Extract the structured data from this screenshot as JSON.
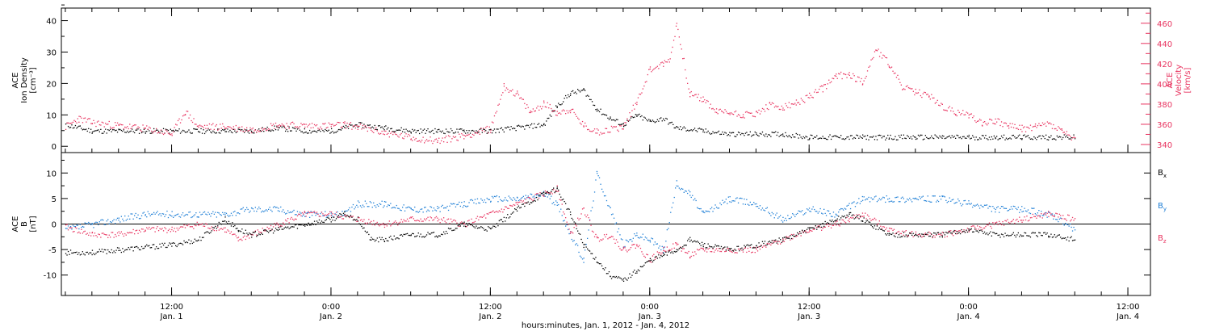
{
  "colors": {
    "black": "#000000",
    "pink": "#e8335f",
    "blue": "#1f7fd6"
  },
  "x_axis": {
    "ticks": [
      {
        "t": 12,
        "time": "12:00",
        "date": "Jan. 1"
      },
      {
        "t": 24,
        "time": "0:00",
        "date": "Jan. 2"
      },
      {
        "t": 36,
        "time": "12:00",
        "date": "Jan. 2"
      },
      {
        "t": 48,
        "time": "0:00",
        "date": "Jan. 3"
      },
      {
        "t": 60,
        "time": "12:00",
        "date": "Jan. 3"
      },
      {
        "t": 72,
        "time": "0:00",
        "date": "Jan. 4"
      },
      {
        "t": 84,
        "time": "12:00",
        "date": "Jan. 4"
      }
    ],
    "label": "hours:minutes, Jan.  1, 2012 - Jan.  4, 2012"
  },
  "chart_data": [
    {
      "type": "scatter",
      "panel": "top",
      "xlim": [
        3.7,
        85.7
      ],
      "ylabel": [
        "ACE",
        "Ion Density",
        "[cm⁻³]"
      ],
      "ylim": [
        -2,
        44
      ],
      "yticks": [
        0,
        10,
        20,
        30,
        40
      ],
      "y2label": [
        "ACE",
        "Velocity",
        "[km/s]"
      ],
      "y2lim": [
        332,
        475
      ],
      "y2ticks": [
        340,
        360,
        380,
        400,
        420,
        440,
        460
      ],
      "series": [
        {
          "color_key": "black",
          "axis": "left",
          "points": [
            [
              4,
              7
            ],
            [
              6,
              5
            ],
            [
              8,
              5
            ],
            [
              10,
              5
            ],
            [
              12,
              5
            ],
            [
              14,
              5
            ],
            [
              16,
              5
            ],
            [
              18,
              5
            ],
            [
              20,
              6
            ],
            [
              22,
              5
            ],
            [
              24,
              5
            ],
            [
              25,
              6
            ],
            [
              26,
              7
            ],
            [
              28,
              6
            ],
            [
              30,
              5
            ],
            [
              32,
              5
            ],
            [
              34,
              5
            ],
            [
              36,
              5
            ],
            [
              38,
              6
            ],
            [
              40,
              7
            ],
            [
              41,
              13
            ],
            [
              42,
              17
            ],
            [
              43,
              18
            ],
            [
              44,
              12
            ],
            [
              45,
              9
            ],
            [
              46,
              7
            ],
            [
              47,
              10
            ],
            [
              48,
              8
            ],
            [
              49,
              9
            ],
            [
              50,
              6
            ],
            [
              52,
              5
            ],
            [
              54,
              4
            ],
            [
              56,
              4
            ],
            [
              58,
              4
            ],
            [
              60,
              3
            ],
            [
              62,
              3
            ],
            [
              64,
              3
            ],
            [
              66,
              3
            ],
            [
              68,
              3
            ],
            [
              70,
              3
            ],
            [
              72,
              3
            ],
            [
              74,
              3
            ],
            [
              76,
              3
            ],
            [
              78,
              3
            ],
            [
              80,
              3
            ]
          ]
        },
        {
          "color_key": "pink",
          "axis": "right",
          "points": [
            [
              4,
              358
            ],
            [
              5,
              366
            ],
            [
              6,
              362
            ],
            [
              8,
              359
            ],
            [
              10,
              356
            ],
            [
              12,
              351
            ],
            [
              13,
              373
            ],
            [
              14,
              358
            ],
            [
              16,
              358
            ],
            [
              18,
              355
            ],
            [
              20,
              360
            ],
            [
              22,
              359
            ],
            [
              24,
              359
            ],
            [
              25,
              360
            ],
            [
              26,
              358
            ],
            [
              28,
              352
            ],
            [
              30,
              347
            ],
            [
              32,
              344
            ],
            [
              34,
              349
            ],
            [
              36,
              356
            ],
            [
              37,
              398
            ],
            [
              38,
              390
            ],
            [
              39,
              372
            ],
            [
              40,
              381
            ],
            [
              41,
              372
            ],
            [
              42,
              375
            ],
            [
              43,
              359
            ],
            [
              44,
              353
            ],
            [
              46,
              358
            ],
            [
              47,
              383
            ],
            [
              48,
              415
            ],
            [
              49,
              420
            ],
            [
              49.5,
              425
            ],
            [
              50,
              460
            ],
            [
              51,
              390
            ],
            [
              52,
              385
            ],
            [
              53,
              373
            ],
            [
              54,
              372
            ],
            [
              55,
              370
            ],
            [
              56,
              371
            ],
            [
              57,
              379
            ],
            [
              58,
              377
            ],
            [
              59,
              381
            ],
            [
              60,
              388
            ],
            [
              61,
              396
            ],
            [
              62,
              408
            ],
            [
              63,
              410
            ],
            [
              64,
              402
            ],
            [
              65,
              435
            ],
            [
              66,
              420
            ],
            [
              67,
              397
            ],
            [
              68,
              392
            ],
            [
              69,
              389
            ],
            [
              70,
              378
            ],
            [
              71,
              372
            ],
            [
              72,
              370
            ],
            [
              73,
              362
            ],
            [
              74,
              364
            ],
            [
              75,
              359
            ],
            [
              76,
              356
            ],
            [
              77,
              358
            ],
            [
              78,
              361
            ],
            [
              79,
              354
            ],
            [
              80,
              345
            ]
          ]
        }
      ]
    },
    {
      "type": "scatter",
      "panel": "bottom",
      "xlim": [
        3.7,
        85.7
      ],
      "ylabel": [
        "ACE",
        "B",
        "[nT]"
      ],
      "ylim": [
        -14,
        14
      ],
      "yticks": [
        -10,
        -5,
        0,
        5,
        10
      ],
      "series": [
        {
          "name": "Bx",
          "color_key": "black",
          "points": [
            [
              4,
              -5.5
            ],
            [
              6,
              -5.5
            ],
            [
              8,
              -5
            ],
            [
              10,
              -4.5
            ],
            [
              12,
              -4
            ],
            [
              14,
              -3
            ],
            [
              16,
              1
            ],
            [
              17,
              -1
            ],
            [
              18,
              -2
            ],
            [
              20,
              -1
            ],
            [
              22,
              0
            ],
            [
              24,
              1
            ],
            [
              25,
              2
            ],
            [
              26,
              1
            ],
            [
              27,
              -3
            ],
            [
              28,
              -3
            ],
            [
              30,
              -2
            ],
            [
              32,
              -2
            ],
            [
              34,
              0
            ],
            [
              36,
              -1
            ],
            [
              38,
              3
            ],
            [
              40,
              6
            ],
            [
              41,
              7
            ],
            [
              42,
              2
            ],
            [
              43,
              -4
            ],
            [
              44,
              -7
            ],
            [
              45,
              -10
            ],
            [
              46,
              -11
            ],
            [
              47,
              -9
            ],
            [
              48,
              -7
            ],
            [
              49,
              -6
            ],
            [
              50,
              -5
            ],
            [
              51,
              -3
            ],
            [
              52,
              -4
            ],
            [
              54,
              -5
            ],
            [
              56,
              -4
            ],
            [
              58,
              -3
            ],
            [
              60,
              -1
            ],
            [
              62,
              1
            ],
            [
              63,
              2
            ],
            [
              64,
              1
            ],
            [
              66,
              -2
            ],
            [
              68,
              -2
            ],
            [
              70,
              -2
            ],
            [
              72,
              -1
            ],
            [
              74,
              -2
            ],
            [
              76,
              -2
            ],
            [
              78,
              -2
            ],
            [
              80,
              -3
            ]
          ]
        },
        {
          "name": "By",
          "color_key": "blue",
          "points": [
            [
              4,
              -1
            ],
            [
              6,
              0
            ],
            [
              8,
              1
            ],
            [
              10,
              2
            ],
            [
              12,
              2
            ],
            [
              14,
              2
            ],
            [
              16,
              2
            ],
            [
              18,
              3
            ],
            [
              20,
              3
            ],
            [
              22,
              2
            ],
            [
              24,
              2
            ],
            [
              25,
              2
            ],
            [
              26,
              4
            ],
            [
              28,
              4
            ],
            [
              30,
              3
            ],
            [
              32,
              3
            ],
            [
              34,
              4
            ],
            [
              36,
              5
            ],
            [
              38,
              5
            ],
            [
              40,
              6
            ],
            [
              41,
              4
            ],
            [
              42,
              -2
            ],
            [
              43,
              -7
            ],
            [
              44,
              10
            ],
            [
              45,
              3
            ],
            [
              46,
              -4
            ],
            [
              47,
              -2
            ],
            [
              48,
              -3
            ],
            [
              49,
              -5
            ],
            [
              50,
              8
            ],
            [
              51,
              6
            ],
            [
              52,
              2
            ],
            [
              54,
              5
            ],
            [
              56,
              4
            ],
            [
              58,
              1
            ],
            [
              60,
              3
            ],
            [
              62,
              2
            ],
            [
              64,
              5
            ],
            [
              66,
              5
            ],
            [
              68,
              5
            ],
            [
              70,
              5
            ],
            [
              72,
              4
            ],
            [
              74,
              3
            ],
            [
              76,
              3
            ],
            [
              78,
              2
            ],
            [
              80,
              -1
            ]
          ]
        },
        {
          "name": "Bz",
          "color_key": "pink",
          "points": [
            [
              4,
              -0.5
            ],
            [
              6,
              -2
            ],
            [
              8,
              -2
            ],
            [
              10,
              -1
            ],
            [
              12,
              -1
            ],
            [
              14,
              0
            ],
            [
              16,
              -1
            ],
            [
              17,
              -3
            ],
            [
              18,
              -2
            ],
            [
              20,
              0
            ],
            [
              22,
              2
            ],
            [
              24,
              2
            ],
            [
              26,
              1
            ],
            [
              28,
              0
            ],
            [
              30,
              1
            ],
            [
              32,
              1
            ],
            [
              34,
              0
            ],
            [
              36,
              2
            ],
            [
              38,
              4
            ],
            [
              40,
              6
            ],
            [
              41,
              7
            ],
            [
              42,
              -2
            ],
            [
              43,
              3
            ],
            [
              44,
              -3
            ],
            [
              45,
              -2
            ],
            [
              46,
              -5
            ],
            [
              47,
              -4
            ],
            [
              48,
              -7
            ],
            [
              49,
              -5
            ],
            [
              50,
              -4
            ],
            [
              51,
              -6
            ],
            [
              52,
              -5
            ],
            [
              54,
              -5
            ],
            [
              56,
              -5
            ],
            [
              58,
              -3
            ],
            [
              60,
              -1
            ],
            [
              62,
              0
            ],
            [
              63,
              1
            ],
            [
              64,
              2
            ],
            [
              66,
              -1
            ],
            [
              68,
              -2
            ],
            [
              70,
              -2
            ],
            [
              72,
              -1
            ],
            [
              74,
              0
            ],
            [
              76,
              1
            ],
            [
              78,
              2
            ],
            [
              80,
              1
            ]
          ]
        }
      ],
      "legend": [
        {
          "label": "B",
          "sub": "x",
          "color_key": "black"
        },
        {
          "label": "B",
          "sub": "y",
          "color_key": "blue"
        },
        {
          "label": "B",
          "sub": "z",
          "color_key": "pink"
        }
      ]
    }
  ]
}
